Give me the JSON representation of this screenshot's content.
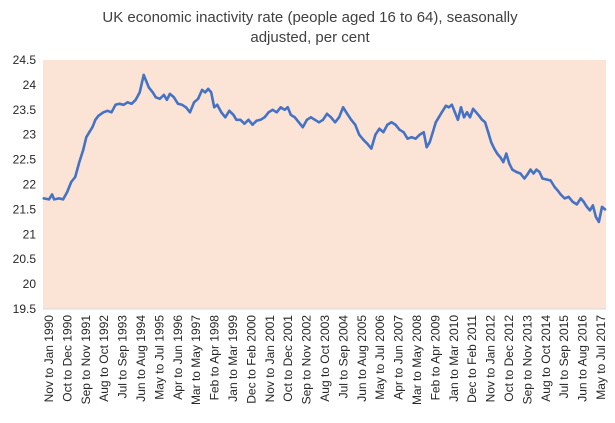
{
  "chart_data": {
    "type": "line",
    "title": "UK economic inactivity rate (people aged 16 to 64), seasonally adjusted, per cent",
    "title_lines": [
      "UK economic inactivity rate (people aged 16 to 64), seasonally",
      "adjusted, per cent"
    ],
    "xlabel": "",
    "ylabel": "",
    "ylim": [
      19.5,
      24.5
    ],
    "yticks": [
      19.5,
      20,
      20.5,
      21,
      21.5,
      22,
      22.5,
      23,
      23.5,
      24,
      24.5
    ],
    "ytick_labels": [
      "19.5",
      "20",
      "20.5",
      "21",
      "21.5",
      "22",
      "22.5",
      "23",
      "23.5",
      "24",
      "24.5"
    ],
    "grid": false,
    "legend": "none",
    "x_tick_labels": [
      "Nov to Jan 1990",
      "Oct to Dec 1990",
      "Sep to Nov 1991",
      "Aug to Oct 1992",
      "Jul to Sep 1993",
      "Jun to Aug 1994",
      "May to Jul 1995",
      "Apr to Jun 1996",
      "Mar to May 1997",
      "Feb to Apr 1998",
      "Jan to Mar 1999",
      "Dec to Feb 2000",
      "Nov to Jan 2001",
      "Oct to Dec 2001",
      "Sep to Nov 2002",
      "Aug to Oct 2003",
      "Jul to Sep 2004",
      "Jun to Aug 2005",
      "May to Jul 2006",
      "Apr to Jun 2007",
      "Mar to May 2008",
      "Feb to Apr 2009",
      "Jan to Mar 2010",
      "Dec to Feb 2011",
      "Nov to Jan 2012",
      "Oct to Dec 2012",
      "Sep to Nov 2013",
      "Aug to Oct 2014",
      "Jul to Sep 2015",
      "Jun to Aug 2016",
      "May to Jul 2017"
    ],
    "series": [
      {
        "color": "#4472c4",
        "points": [
          [
            1990.04,
            21.72
          ],
          [
            1990.3,
            21.7
          ],
          [
            1990.45,
            21.8
          ],
          [
            1990.55,
            21.7
          ],
          [
            1990.8,
            21.72
          ],
          [
            1991.0,
            21.7
          ],
          [
            1991.2,
            21.85
          ],
          [
            1991.4,
            22.05
          ],
          [
            1991.6,
            22.15
          ],
          [
            1991.8,
            22.45
          ],
          [
            1992.0,
            22.7
          ],
          [
            1992.15,
            22.95
          ],
          [
            1992.3,
            23.05
          ],
          [
            1992.45,
            23.15
          ],
          [
            1992.6,
            23.3
          ],
          [
            1992.75,
            23.38
          ],
          [
            1993.0,
            23.45
          ],
          [
            1993.2,
            23.48
          ],
          [
            1993.4,
            23.45
          ],
          [
            1993.6,
            23.6
          ],
          [
            1993.8,
            23.62
          ],
          [
            1994.0,
            23.6
          ],
          [
            1994.2,
            23.65
          ],
          [
            1994.4,
            23.62
          ],
          [
            1994.6,
            23.7
          ],
          [
            1994.8,
            23.85
          ],
          [
            1995.0,
            24.2
          ],
          [
            1995.1,
            24.1
          ],
          [
            1995.25,
            23.95
          ],
          [
            1995.45,
            23.85
          ],
          [
            1995.6,
            23.75
          ],
          [
            1995.8,
            23.72
          ],
          [
            1996.0,
            23.8
          ],
          [
            1996.15,
            23.7
          ],
          [
            1996.3,
            23.82
          ],
          [
            1996.5,
            23.75
          ],
          [
            1996.7,
            23.62
          ],
          [
            1996.9,
            23.6
          ],
          [
            1997.1,
            23.55
          ],
          [
            1997.3,
            23.45
          ],
          [
            1997.5,
            23.65
          ],
          [
            1997.7,
            23.72
          ],
          [
            1997.9,
            23.9
          ],
          [
            1998.05,
            23.85
          ],
          [
            1998.2,
            23.92
          ],
          [
            1998.35,
            23.85
          ],
          [
            1998.5,
            23.55
          ],
          [
            1998.65,
            23.6
          ],
          [
            1998.85,
            23.45
          ],
          [
            1999.05,
            23.35
          ],
          [
            1999.25,
            23.48
          ],
          [
            1999.45,
            23.4
          ],
          [
            1999.6,
            23.3
          ],
          [
            1999.8,
            23.3
          ],
          [
            2000.0,
            23.22
          ],
          [
            2000.2,
            23.3
          ],
          [
            2000.4,
            23.2
          ],
          [
            2000.6,
            23.28
          ],
          [
            2000.8,
            23.3
          ],
          [
            2001.0,
            23.35
          ],
          [
            2001.2,
            23.45
          ],
          [
            2001.4,
            23.5
          ],
          [
            2001.6,
            23.45
          ],
          [
            2001.8,
            23.55
          ],
          [
            2002.0,
            23.5
          ],
          [
            2002.15,
            23.55
          ],
          [
            2002.3,
            23.4
          ],
          [
            2002.5,
            23.35
          ],
          [
            2002.7,
            23.25
          ],
          [
            2002.9,
            23.15
          ],
          [
            2003.1,
            23.3
          ],
          [
            2003.3,
            23.35
          ],
          [
            2003.5,
            23.3
          ],
          [
            2003.7,
            23.25
          ],
          [
            2003.9,
            23.3
          ],
          [
            2004.1,
            23.42
          ],
          [
            2004.3,
            23.35
          ],
          [
            2004.5,
            23.25
          ],
          [
            2004.7,
            23.35
          ],
          [
            2004.9,
            23.55
          ],
          [
            2005.1,
            23.42
          ],
          [
            2005.3,
            23.3
          ],
          [
            2005.5,
            23.2
          ],
          [
            2005.7,
            23.0
          ],
          [
            2005.9,
            22.9
          ],
          [
            2006.1,
            22.82
          ],
          [
            2006.3,
            22.72
          ],
          [
            2006.5,
            23.0
          ],
          [
            2006.7,
            23.12
          ],
          [
            2006.9,
            23.05
          ],
          [
            2007.1,
            23.2
          ],
          [
            2007.3,
            23.25
          ],
          [
            2007.5,
            23.2
          ],
          [
            2007.7,
            23.1
          ],
          [
            2007.9,
            23.05
          ],
          [
            2008.1,
            22.92
          ],
          [
            2008.3,
            22.95
          ],
          [
            2008.5,
            22.92
          ],
          [
            2008.7,
            23.0
          ],
          [
            2008.9,
            23.05
          ],
          [
            2009.05,
            22.75
          ],
          [
            2009.2,
            22.85
          ],
          [
            2009.35,
            23.05
          ],
          [
            2009.5,
            23.25
          ],
          [
            2009.65,
            23.35
          ],
          [
            2009.8,
            23.45
          ],
          [
            2010.0,
            23.58
          ],
          [
            2010.15,
            23.55
          ],
          [
            2010.3,
            23.6
          ],
          [
            2010.45,
            23.45
          ],
          [
            2010.6,
            23.3
          ],
          [
            2010.75,
            23.55
          ],
          [
            2010.9,
            23.35
          ],
          [
            2011.05,
            23.45
          ],
          [
            2011.2,
            23.35
          ],
          [
            2011.35,
            23.52
          ],
          [
            2011.5,
            23.45
          ],
          [
            2011.65,
            23.38
          ],
          [
            2011.8,
            23.3
          ],
          [
            2011.95,
            23.25
          ],
          [
            2012.1,
            23.05
          ],
          [
            2012.25,
            22.85
          ],
          [
            2012.4,
            22.72
          ],
          [
            2012.55,
            22.62
          ],
          [
            2012.7,
            22.55
          ],
          [
            2012.85,
            22.45
          ],
          [
            2013.0,
            22.62
          ],
          [
            2013.15,
            22.42
          ],
          [
            2013.3,
            22.3
          ],
          [
            2013.5,
            22.25
          ],
          [
            2013.7,
            22.22
          ],
          [
            2013.9,
            22.12
          ],
          [
            2014.05,
            22.2
          ],
          [
            2014.2,
            22.3
          ],
          [
            2014.35,
            22.22
          ],
          [
            2014.5,
            22.3
          ],
          [
            2014.65,
            22.25
          ],
          [
            2014.8,
            22.12
          ],
          [
            2015.0,
            22.1
          ],
          [
            2015.2,
            22.08
          ],
          [
            2015.4,
            21.95
          ],
          [
            2015.55,
            21.88
          ],
          [
            2015.7,
            21.8
          ],
          [
            2015.9,
            21.72
          ],
          [
            2016.1,
            21.75
          ],
          [
            2016.3,
            21.65
          ],
          [
            2016.5,
            21.6
          ],
          [
            2016.7,
            21.72
          ],
          [
            2016.85,
            21.65
          ],
          [
            2017.0,
            21.55
          ],
          [
            2017.15,
            21.48
          ],
          [
            2017.3,
            21.58
          ],
          [
            2017.45,
            21.35
          ],
          [
            2017.6,
            21.25
          ],
          [
            2017.75,
            21.55
          ],
          [
            2017.9,
            21.5
          ]
        ]
      }
    ]
  }
}
